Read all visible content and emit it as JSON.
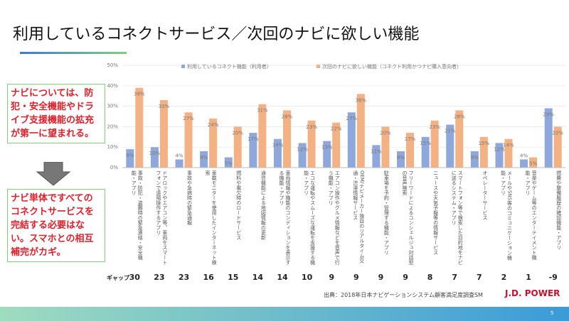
{
  "slide": {
    "title": "利用しているコネクトサービス／次回のナビに欲しい機能",
    "callouts": [
      "ナビについては、防犯・安全機能やドライブ支援機能の拡充が第一に望まれる。",
      "ナビ単体ですべてのコネクトサービスを完結する必要はない。スマホとの相互補完がカギ。"
    ],
    "gap_label": "ギャップ",
    "gaps": [
      "30",
      "23",
      "23",
      "16",
      "15",
      "14",
      "14",
      "10",
      "9",
      "9",
      "9",
      "9",
      "8",
      "7",
      "7",
      "2",
      "1",
      "-9"
    ],
    "source": "出典：2018年日本ナビゲーションシステム顧客満足度調査SM",
    "logo": "J.D. POWER",
    "page": "5"
  },
  "chart_data": {
    "type": "bar",
    "categories": [
      "事故・防犯・盗難時の緊急連絡・安全機能・アプリ",
      "ドアロックやエアコン等、車両をスマートフォンで遠隔操作するアプリ",
      "事故や急病時の緊急通報",
      "車載モニターを使用したインターネット検索",
      "燃料や電欠時のロードサービス",
      "通信機能による地図情報の更新",
      "車両情報や機能のコンディションを表示する機能・アプリ",
      "エコな運転やスムーズな運転を支援する機能・アプリ",
      "エアコン操作やグルメ情報などを音声で行う機能・アプリ",
      "OEM/ナビメーカー独自のリアルタイム交通・渋滞情報サービス",
      "駐車場を予約・管理する機能・アプリ",
      "フリーワードによるコンシェルジュ対話型の音声検索",
      "ニュースや天気予報等の情報サービス",
      "スマートフォン等で検索した目的地をナビに送るシステム・アプリ",
      "オペレーターサービス",
      "メールやSNS等のコミュニケーション機能・アプリ",
      "音楽やゲーム等のエンターテイメント機能・アプリ",
      "燃費や整備履歴の確認機能・アプリ"
    ],
    "series": [
      {
        "name": "利用しているコネクト機能（利用者）",
        "color": "#8fa8dc",
        "values": [
          9,
          10,
          4,
          8,
          5,
          17,
          14,
          12,
          13,
          27,
          11,
          8,
          15,
          21,
          8,
          12,
          4,
          29
        ],
        "value_labels": [
          "9%",
          "10%",
          "4%",
          "8%",
          "5%",
          "17%",
          "14%",
          "12%",
          "13%",
          "27%",
          "11%",
          "8%",
          "15%",
          "21%",
          "8%",
          "12%",
          "4%",
          "29%"
        ]
      },
      {
        "name": "次回のナビに欲しい機能（コネクト利用かつナビ購入意向者）",
        "color": "#f4b183",
        "values": [
          39,
          33,
          27,
          24,
          20,
          31,
          28,
          23,
          22,
          36,
          20,
          17,
          23,
          28,
          15,
          14,
          5,
          20
        ],
        "value_labels": [
          "39%",
          "33%",
          "27%",
          "24%",
          "20%",
          "31%",
          "28%",
          "23%",
          "22%",
          "36%",
          "20%",
          "17%",
          "23%",
          "28%",
          "15%",
          "14%",
          "5%",
          "20%"
        ]
      }
    ],
    "ylim": [
      0,
      50
    ],
    "yticks": [
      {
        "value": 0,
        "label": "0%"
      },
      {
        "value": 10,
        "label": "10%"
      },
      {
        "value": 20,
        "label": "20%"
      },
      {
        "value": 30,
        "label": "30%"
      },
      {
        "value": 40,
        "label": "40%"
      },
      {
        "value": 50,
        "label": "50%"
      }
    ],
    "grid": true
  }
}
